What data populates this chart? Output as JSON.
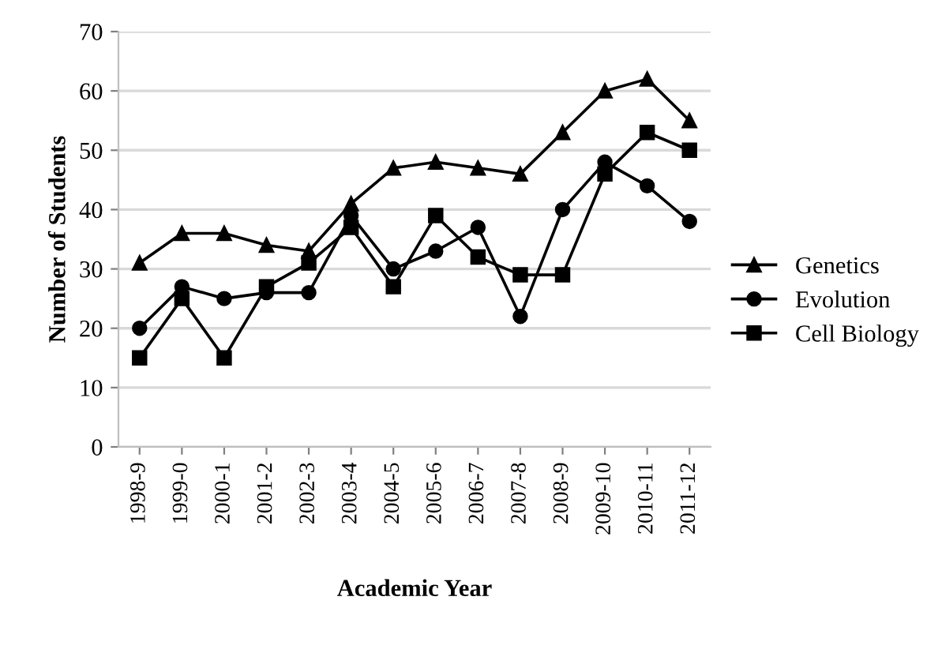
{
  "chart_data": {
    "type": "line",
    "xlabel": "Academic Year",
    "ylabel": "Number of Students",
    "categories": [
      "1998-9",
      "1999-0",
      "2000-1",
      "2001-2",
      "2002-3",
      "2003-4",
      "2004-5",
      "2005-6",
      "2006-7",
      "2007-8",
      "2008-9",
      "2009-10",
      "2010-11",
      "2011-12"
    ],
    "series": [
      {
        "name": "Genetics",
        "color": "#000000",
        "marker": "triangle",
        "values": [
          31,
          36,
          36,
          34,
          33,
          41,
          47,
          48,
          47,
          46,
          53,
          60,
          62,
          55
        ]
      },
      {
        "name": "Evolution",
        "color": "#000000",
        "marker": "circle",
        "values": [
          20,
          27,
          25,
          26,
          26,
          39,
          30,
          33,
          37,
          22,
          40,
          48,
          44,
          38
        ]
      },
      {
        "name": "Cell Biology",
        "color": "#000000",
        "marker": "square",
        "values": [
          15,
          25,
          15,
          27,
          31,
          37,
          27,
          39,
          32,
          29,
          29,
          46,
          53,
          50
        ]
      }
    ],
    "ylim": [
      0,
      70
    ],
    "yticks": [
      0,
      10,
      20,
      30,
      40,
      50,
      60,
      70
    ],
    "grid": "y",
    "legend": "right",
    "line_style": "solid"
  }
}
